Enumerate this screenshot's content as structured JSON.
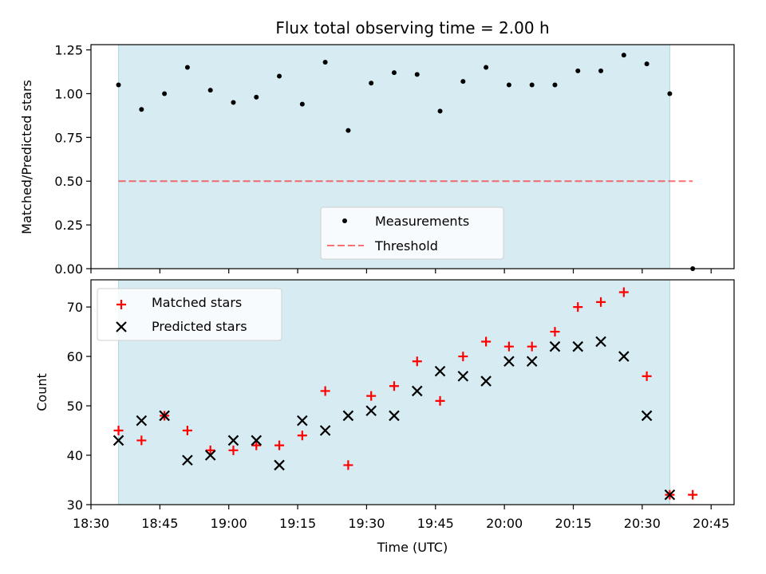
{
  "title": "Flux total observing time = 2.00 h",
  "colors": {
    "shade": "#add8e6",
    "measurement": "#000000",
    "threshold": "#ff0000",
    "matched": "#ff0000",
    "predicted": "#000000"
  },
  "chart_data": [
    {
      "type": "scatter",
      "ylabel": "Matched/Predicted stars",
      "ylim": [
        0,
        1.28
      ],
      "yticks": [
        0.0,
        0.25,
        0.5,
        0.75,
        1.0,
        1.25
      ],
      "ytick_labels": [
        "0.00",
        "0.25",
        "0.50",
        "0.75",
        "1.00",
        "1.25"
      ],
      "shaded_span": [
        "18:36",
        "20:36"
      ],
      "legend": {
        "placement": "bottom-center",
        "entries": [
          "Measurements",
          "Threshold"
        ]
      },
      "threshold": {
        "name": "Threshold",
        "value": 0.5,
        "x_range": [
          "18:36",
          "20:41"
        ]
      },
      "series": [
        {
          "name": "Measurements",
          "x": [
            "18:36",
            "18:41",
            "18:46",
            "18:51",
            "18:56",
            "19:01",
            "19:06",
            "19:11",
            "19:16",
            "19:21",
            "19:26",
            "19:31",
            "19:36",
            "19:41",
            "19:46",
            "19:51",
            "19:56",
            "20:01",
            "20:06",
            "20:11",
            "20:16",
            "20:21",
            "20:26",
            "20:31",
            "20:36",
            "20:41"
          ],
          "values": [
            1.05,
            0.91,
            1.0,
            1.15,
            1.02,
            0.95,
            0.98,
            1.1,
            0.94,
            1.18,
            0.79,
            1.06,
            1.12,
            1.11,
            0.9,
            1.07,
            1.15,
            1.05,
            1.05,
            1.05,
            1.13,
            1.13,
            1.22,
            1.17,
            1.0,
            0.0
          ]
        }
      ]
    },
    {
      "type": "scatter",
      "xlabel": "Time (UTC)",
      "ylabel": "Count",
      "ylim": [
        30,
        75.5
      ],
      "yticks": [
        30,
        40,
        50,
        60,
        70
      ],
      "xticks": [
        "18:30",
        "18:45",
        "19:00",
        "19:15",
        "19:30",
        "19:45",
        "20:00",
        "20:15",
        "20:30",
        "20:45"
      ],
      "xlim": [
        "18:30",
        "20:50"
      ],
      "shaded_span": [
        "18:36",
        "20:36"
      ],
      "legend": {
        "placement": "top-left",
        "entries": [
          "Matched stars",
          "Predicted stars"
        ]
      },
      "series": [
        {
          "name": "Matched stars",
          "x": [
            "18:36",
            "18:41",
            "18:46",
            "18:51",
            "18:56",
            "19:01",
            "19:06",
            "19:11",
            "19:16",
            "19:21",
            "19:26",
            "19:31",
            "19:36",
            "19:41",
            "19:46",
            "19:51",
            "19:56",
            "20:01",
            "20:06",
            "20:11",
            "20:16",
            "20:21",
            "20:26",
            "20:31",
            "20:36",
            "20:41"
          ],
          "values": [
            45,
            43,
            48,
            45,
            41,
            41,
            42,
            42,
            44,
            53,
            38,
            52,
            54,
            59,
            51,
            60,
            63,
            62,
            62,
            65,
            70,
            71,
            73,
            56,
            32,
            32
          ]
        },
        {
          "name": "Predicted stars",
          "x": [
            "18:36",
            "18:41",
            "18:46",
            "18:51",
            "18:56",
            "19:01",
            "19:06",
            "19:11",
            "19:16",
            "19:21",
            "19:26",
            "19:31",
            "19:36",
            "19:41",
            "19:46",
            "19:51",
            "19:56",
            "20:01",
            "20:06",
            "20:11",
            "20:16",
            "20:21",
            "20:26",
            "20:31",
            "20:36"
          ],
          "values": [
            43,
            47,
            48,
            39,
            40,
            43,
            43,
            38,
            47,
            45,
            48,
            49,
            48,
            53,
            57,
            56,
            55,
            59,
            59,
            62,
            62,
            63,
            60,
            48,
            32
          ]
        }
      ]
    }
  ]
}
